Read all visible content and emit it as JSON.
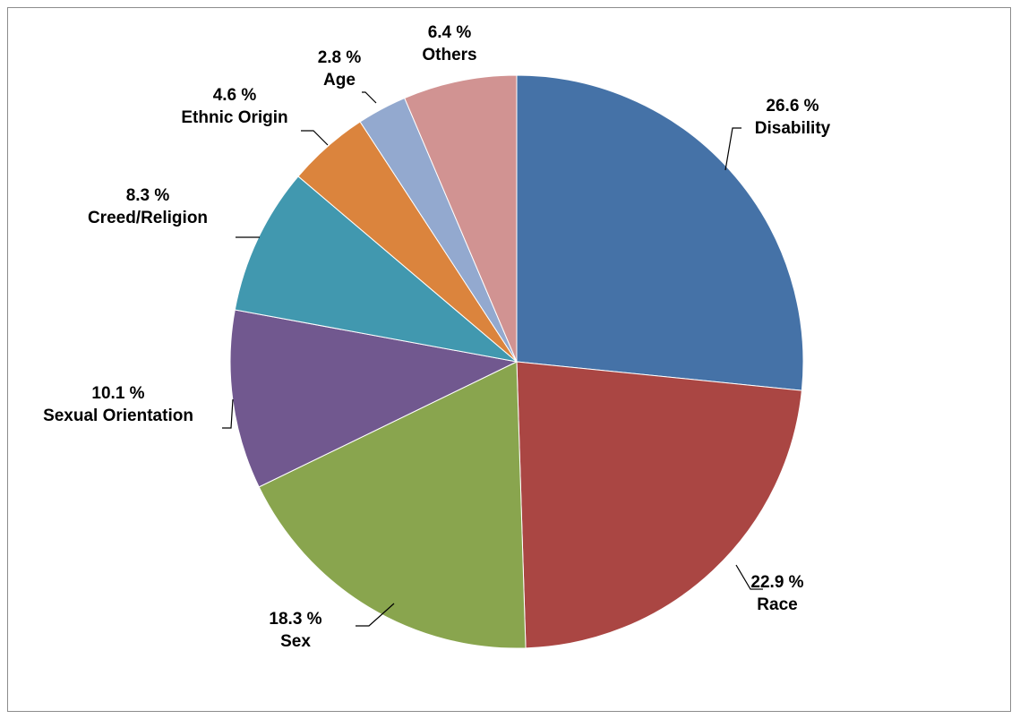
{
  "chart_data": {
    "type": "pie",
    "title": "",
    "start_angle_deg": 0,
    "direction": "clockwise",
    "legend": "none",
    "slices": [
      {
        "label": "Disability",
        "value": 26.6,
        "value_label": "26.6 %",
        "color": "#4572A7"
      },
      {
        "label": "Race",
        "value": 22.9,
        "value_label": "22.9 %",
        "color": "#AA4643"
      },
      {
        "label": "Sex",
        "value": 18.3,
        "value_label": "18.3 %",
        "color": "#89A54E"
      },
      {
        "label": "Sexual Orientation",
        "value": 10.1,
        "value_label": "10.1 %",
        "color": "#71588F"
      },
      {
        "label": "Creed/Religion",
        "value": 8.3,
        "value_label": "8.3 %",
        "color": "#4198AF"
      },
      {
        "label": "Ethnic Origin",
        "value": 4.6,
        "value_label": "4.6 %",
        "color": "#DB843D"
      },
      {
        "label": "Age",
        "value": 2.8,
        "value_label": "2.8 %",
        "color": "#93A9CF"
      },
      {
        "label": "Others",
        "value": 6.4,
        "value_label": "6.4 %",
        "color": "#D19392"
      }
    ]
  }
}
